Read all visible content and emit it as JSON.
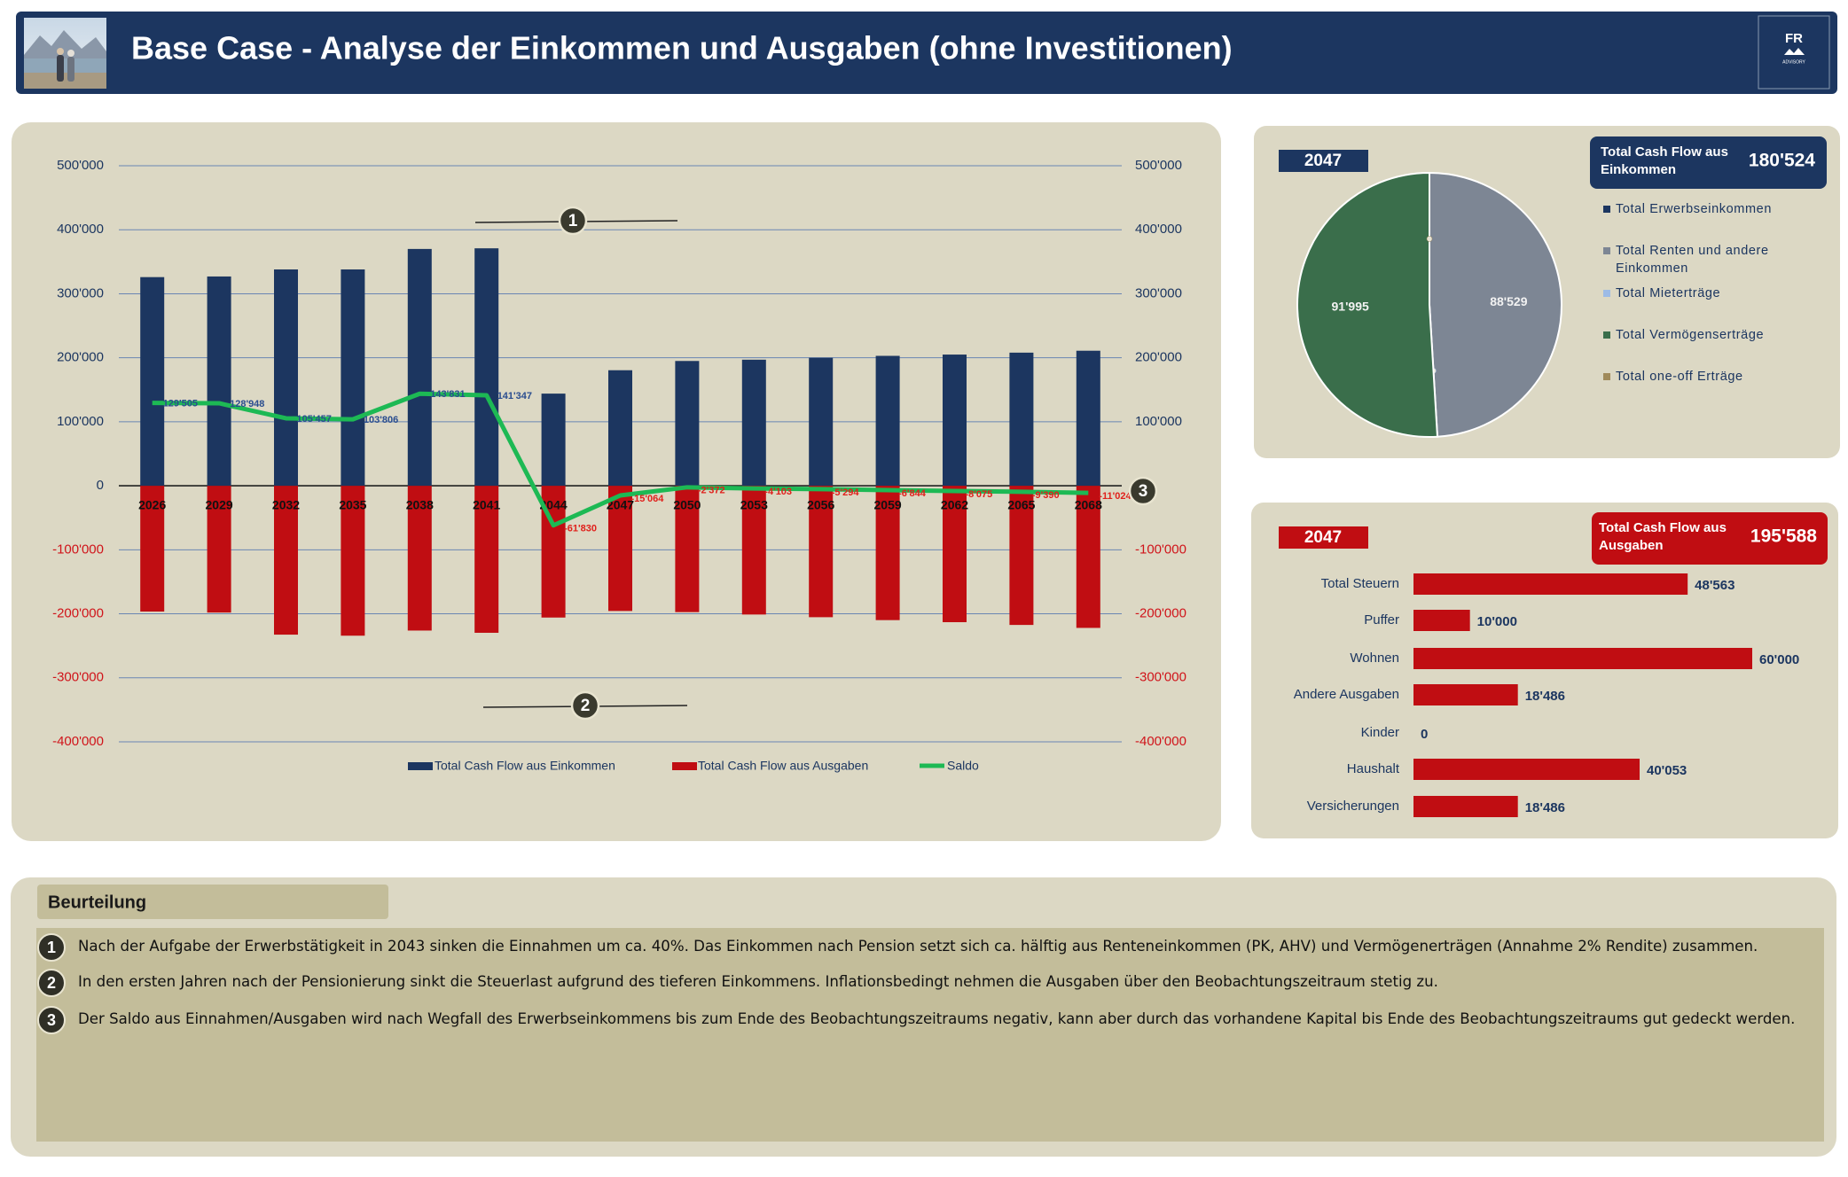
{
  "header": {
    "title": "Base Case - Analyse der Einkommen und Ausgaben (ohne Investitionen)",
    "logo": {
      "text": "FR",
      "subtitle": "ADVISORY"
    }
  },
  "chart_data": [
    {
      "type": "bar",
      "categories": [
        "2026",
        "2029",
        "2032",
        "2035",
        "2038",
        "2041",
        "2044",
        "2047",
        "2050",
        "2053",
        "2056",
        "2059",
        "2062",
        "2065",
        "2068"
      ],
      "series": [
        {
          "name": "Total Cash Flow aus Einkommen",
          "color": "#1c3660",
          "values": [
            326000,
            327000,
            338000,
            338000,
            370000,
            371000,
            144000,
            180524,
            195000,
            197000,
            200000,
            203000,
            205000,
            208000,
            211000
          ]
        },
        {
          "name": "Total Cash Flow aus Ausgaben",
          "color": "#c00d12",
          "values": [
            -196495,
            -198052,
            -232543,
            -234194,
            -226169,
            -229653,
            -205830,
            -195588,
            -197372,
            -201103,
            -205294,
            -209844,
            -213075,
            -217390,
            -222024
          ]
        },
        {
          "name": "Saldo",
          "type": "line",
          "axis": "y2",
          "color": "#1db954",
          "values": [
            129505,
            128948,
            105457,
            103806,
            143831,
            141347,
            -61830,
            -15064,
            -2372,
            -4103,
            -5294,
            -6844,
            -8075,
            -9390,
            -11024
          ],
          "value_labels": [
            "129'505",
            "128'948",
            "105'457",
            "103'806",
            "143'831",
            "141'347",
            "-61'830",
            "-15'064",
            "-2'372",
            "-4'103",
            "-5'294",
            "-6'844",
            "-8'075",
            "-9'390",
            "-11'024"
          ]
        }
      ],
      "ylim": [
        -400000,
        500000
      ],
      "yticks": [
        {
          "value": 500000,
          "label": "500'000"
        },
        {
          "value": 400000,
          "label": "400'000"
        },
        {
          "value": 300000,
          "label": "300'000"
        },
        {
          "value": 200000,
          "label": "200'000"
        },
        {
          "value": 100000,
          "label": "100'000"
        },
        0,
        {
          "value": -100000,
          "label": "-100'000"
        },
        {
          "value": -200000,
          "label": "-200'000"
        },
        {
          "value": -300000,
          "label": "-300'000"
        },
        {
          "value": -400000,
          "label": "-400'000"
        }
      ],
      "y2lim": [
        -400000,
        500000
      ],
      "y2ticks": [
        {
          "value": 500000,
          "label": "500'000"
        },
        {
          "value": 400000,
          "label": "400'000"
        },
        {
          "value": 300000,
          "label": "300'000"
        },
        {
          "value": 200000,
          "label": "200'000"
        },
        {
          "value": 100000,
          "label": "100'000"
        },
        0,
        {
          "value": -100000,
          "label": "-100'000"
        },
        {
          "value": -200000,
          "label": "-200'000"
        },
        {
          "value": -300000,
          "label": "-300'000"
        },
        {
          "value": -400000,
          "label": "-400'000"
        }
      ],
      "grid": true,
      "legend": "bottom",
      "annotations": [
        "1",
        "2",
        "3"
      ]
    },
    {
      "type": "pie",
      "title": "2047",
      "subtitle": "Total Cash Flow aus Einkommen",
      "total": {
        "value": 180524,
        "label": "180'524"
      },
      "categories": [
        "Total Erwerbseinkommen",
        "Total Renten und andere Einkommen",
        "Total Mieterträge",
        "Total Vermögenserträge",
        "Total one-off Erträge"
      ],
      "values": [
        0,
        88529,
        0,
        91995,
        0
      ],
      "value_labels": [
        null,
        "88'529",
        null,
        "91'995",
        null
      ],
      "colors": [
        "#1c3660",
        "#7d8694",
        "#9dbbe6",
        "#3a6e4b",
        "#a08a5a"
      ],
      "legend": "right"
    },
    {
      "type": "bar",
      "orientation": "horizontal",
      "title": "2047",
      "subtitle": "Total Cash Flow aus Ausgaben",
      "total": {
        "value": 195588,
        "label": "195'588"
      },
      "categories": [
        "Total Steuern",
        "Puffer",
        "Wohnen",
        "Andere Ausgaben",
        "Kinder",
        "Haushalt",
        "Versicherungen"
      ],
      "values": [
        48563,
        10000,
        60000,
        18486,
        0,
        40053,
        18486
      ],
      "value_labels": [
        "48'563",
        "10'000",
        "60'000",
        "18'486",
        "0",
        "40'053",
        "18'486"
      ],
      "color": "#c00d12"
    }
  ],
  "assessment": {
    "title": "Beurteilung",
    "items": [
      {
        "number": "1",
        "text": "Nach der Aufgabe der Erwerbstätigkeit in 2043 sinken die Einnahmen um ca. 40%. Das Einkommen nach Pension setzt sich ca. hälftig aus Renteneinkommen (PK, AHV) und Vermögenerträgen (Annahme 2% Rendite) zusammen."
      },
      {
        "number": "2",
        "text": "In den ersten Jahren nach der Pensionierung sinkt die Steuerlast aufgrund des tieferen Einkommens. Inflationsbedingt nehmen die Ausgaben über den Beobachtungszeitraum stetig zu."
      },
      {
        "number": "3",
        "text": "Der Saldo aus Einnahmen/Ausgaben wird nach Wegfall des Erwerbseinkommens bis zum Ende des Beobachtungszeitraums negativ, kann aber durch das vorhandene Kapital bis Ende des Beobachtungszeitraums gut gedeckt werden."
      }
    ]
  }
}
